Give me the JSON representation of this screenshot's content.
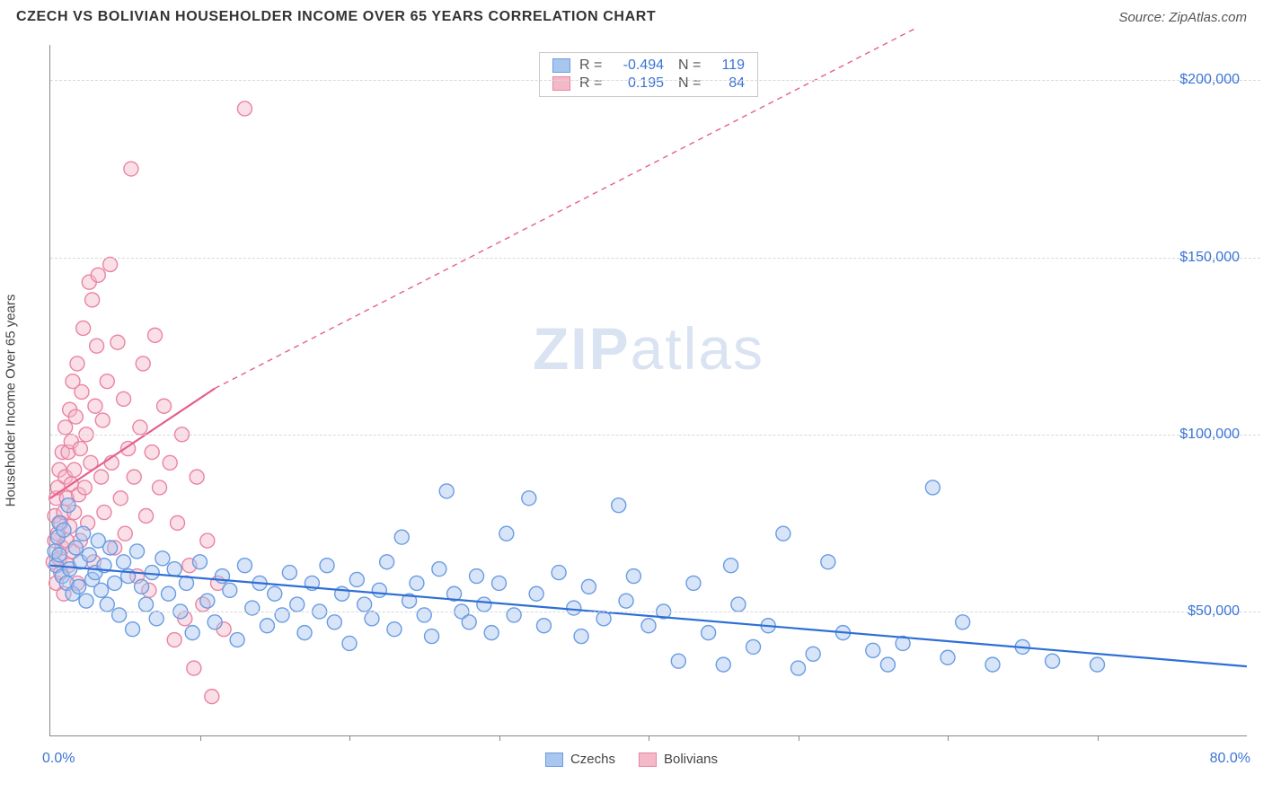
{
  "header": {
    "title": "CZECH VS BOLIVIAN HOUSEHOLDER INCOME OVER 65 YEARS CORRELATION CHART",
    "source": "Source: ZipAtlas.com"
  },
  "watermark": {
    "pre": "ZIP",
    "post": "atlas"
  },
  "ylabel": "Householder Income Over 65 years",
  "chart": {
    "type": "scatter",
    "background_color": "#ffffff",
    "grid_color": "#d8d8d8",
    "axis_color": "#888888",
    "xlim": [
      0,
      80
    ],
    "ylim": [
      15000,
      210000
    ],
    "yticks": [
      50000,
      100000,
      150000,
      200000
    ],
    "ytick_labels": [
      "$50,000",
      "$100,000",
      "$150,000",
      "$200,000"
    ],
    "xtick_positions": [
      10,
      20,
      30,
      40,
      50,
      60,
      70
    ],
    "xaxis_left_label": "0.0%",
    "xaxis_right_label": "80.0%",
    "marker_radius": 8,
    "marker_opacity": 0.45,
    "marker_stroke_width": 1.4,
    "trend_line_width": 2.2,
    "series": {
      "czechs": {
        "fill": "#a9c6ef",
        "stroke": "#6a9ce2",
        "line_color": "#2e6fd6",
        "trend": {
          "x1": 0,
          "y1": 63000,
          "x2": 80,
          "y2": 34500
        },
        "points": [
          [
            0.3,
            67000
          ],
          [
            0.4,
            63000
          ],
          [
            0.5,
            71000
          ],
          [
            0.6,
            66000
          ],
          [
            0.6,
            75000
          ],
          [
            0.8,
            60000
          ],
          [
            0.9,
            73000
          ],
          [
            1.1,
            58000
          ],
          [
            1.2,
            80000
          ],
          [
            1.3,
            62000
          ],
          [
            1.5,
            55000
          ],
          [
            1.7,
            68000
          ],
          [
            1.9,
            57000
          ],
          [
            2.0,
            64000
          ],
          [
            2.2,
            72000
          ],
          [
            2.4,
            53000
          ],
          [
            2.6,
            66000
          ],
          [
            2.8,
            59000
          ],
          [
            3.0,
            61000
          ],
          [
            3.2,
            70000
          ],
          [
            3.4,
            56000
          ],
          [
            3.6,
            63000
          ],
          [
            3.8,
            52000
          ],
          [
            4.0,
            68000
          ],
          [
            4.3,
            58000
          ],
          [
            4.6,
            49000
          ],
          [
            4.9,
            64000
          ],
          [
            5.2,
            60000
          ],
          [
            5.5,
            45000
          ],
          [
            5.8,
            67000
          ],
          [
            6.1,
            57000
          ],
          [
            6.4,
            52000
          ],
          [
            6.8,
            61000
          ],
          [
            7.1,
            48000
          ],
          [
            7.5,
            65000
          ],
          [
            7.9,
            55000
          ],
          [
            8.3,
            62000
          ],
          [
            8.7,
            50000
          ],
          [
            9.1,
            58000
          ],
          [
            9.5,
            44000
          ],
          [
            10,
            64000
          ],
          [
            10.5,
            53000
          ],
          [
            11,
            47000
          ],
          [
            11.5,
            60000
          ],
          [
            12,
            56000
          ],
          [
            12.5,
            42000
          ],
          [
            13,
            63000
          ],
          [
            13.5,
            51000
          ],
          [
            14,
            58000
          ],
          [
            14.5,
            46000
          ],
          [
            15,
            55000
          ],
          [
            15.5,
            49000
          ],
          [
            16,
            61000
          ],
          [
            16.5,
            52000
          ],
          [
            17,
            44000
          ],
          [
            17.5,
            58000
          ],
          [
            18,
            50000
          ],
          [
            18.5,
            63000
          ],
          [
            19,
            47000
          ],
          [
            19.5,
            55000
          ],
          [
            20,
            41000
          ],
          [
            20.5,
            59000
          ],
          [
            21,
            52000
          ],
          [
            21.5,
            48000
          ],
          [
            22,
            56000
          ],
          [
            22.5,
            64000
          ],
          [
            23,
            45000
          ],
          [
            23.5,
            71000
          ],
          [
            24,
            53000
          ],
          [
            24.5,
            58000
          ],
          [
            25,
            49000
          ],
          [
            25.5,
            43000
          ],
          [
            26,
            62000
          ],
          [
            26.5,
            84000
          ],
          [
            27,
            55000
          ],
          [
            27.5,
            50000
          ],
          [
            28,
            47000
          ],
          [
            28.5,
            60000
          ],
          [
            29,
            52000
          ],
          [
            29.5,
            44000
          ],
          [
            30,
            58000
          ],
          [
            30.5,
            72000
          ],
          [
            31,
            49000
          ],
          [
            32,
            82000
          ],
          [
            32.5,
            55000
          ],
          [
            33,
            46000
          ],
          [
            34,
            61000
          ],
          [
            35,
            51000
          ],
          [
            35.5,
            43000
          ],
          [
            36,
            57000
          ],
          [
            37,
            48000
          ],
          [
            38,
            80000
          ],
          [
            38.5,
            53000
          ],
          [
            39,
            60000
          ],
          [
            40,
            46000
          ],
          [
            41,
            50000
          ],
          [
            42,
            36000
          ],
          [
            43,
            58000
          ],
          [
            44,
            44000
          ],
          [
            45,
            35000
          ],
          [
            45.5,
            63000
          ],
          [
            46,
            52000
          ],
          [
            47,
            40000
          ],
          [
            48,
            46000
          ],
          [
            49,
            72000
          ],
          [
            50,
            34000
          ],
          [
            51,
            38000
          ],
          [
            52,
            64000
          ],
          [
            53,
            44000
          ],
          [
            55,
            39000
          ],
          [
            56,
            35000
          ],
          [
            57,
            41000
          ],
          [
            59,
            85000
          ],
          [
            60,
            37000
          ],
          [
            61,
            47000
          ],
          [
            63,
            35000
          ],
          [
            65,
            40000
          ],
          [
            67,
            36000
          ],
          [
            70,
            35000
          ]
        ]
      },
      "bolivians": {
        "fill": "#f4b9c9",
        "stroke": "#ea83a4",
        "line_color": "#e65f8e",
        "trend_solid": {
          "x1": 0,
          "y1": 82000,
          "x2": 11,
          "y2": 113000
        },
        "trend_dash": {
          "x1": 11,
          "y1": 113000,
          "x2": 58,
          "y2": 215000
        },
        "points": [
          [
            0.2,
            64000
          ],
          [
            0.3,
            70000
          ],
          [
            0.3,
            77000
          ],
          [
            0.4,
            82000
          ],
          [
            0.4,
            58000
          ],
          [
            0.5,
            72000
          ],
          [
            0.5,
            85000
          ],
          [
            0.6,
            65000
          ],
          [
            0.6,
            90000
          ],
          [
            0.7,
            75000
          ],
          [
            0.7,
            61000
          ],
          [
            0.8,
            95000
          ],
          [
            0.8,
            68000
          ],
          [
            0.9,
            78000
          ],
          [
            0.9,
            55000
          ],
          [
            1.0,
            88000
          ],
          [
            1.0,
            102000
          ],
          [
            1.1,
            70000
          ],
          [
            1.1,
            82000
          ],
          [
            1.2,
            95000
          ],
          [
            1.2,
            63000
          ],
          [
            1.3,
            107000
          ],
          [
            1.3,
            74000
          ],
          [
            1.4,
            86000
          ],
          [
            1.4,
            98000
          ],
          [
            1.5,
            115000
          ],
          [
            1.5,
            67000
          ],
          [
            1.6,
            90000
          ],
          [
            1.6,
            78000
          ],
          [
            1.7,
            105000
          ],
          [
            1.8,
            58000
          ],
          [
            1.8,
            120000
          ],
          [
            1.9,
            83000
          ],
          [
            2.0,
            96000
          ],
          [
            2.0,
            70000
          ],
          [
            2.1,
            112000
          ],
          [
            2.2,
            130000
          ],
          [
            2.3,
            85000
          ],
          [
            2.4,
            100000
          ],
          [
            2.5,
            75000
          ],
          [
            2.6,
            143000
          ],
          [
            2.7,
            92000
          ],
          [
            2.8,
            138000
          ],
          [
            2.9,
            64000
          ],
          [
            3.0,
            108000
          ],
          [
            3.1,
            125000
          ],
          [
            3.2,
            145000
          ],
          [
            3.4,
            88000
          ],
          [
            3.5,
            104000
          ],
          [
            3.6,
            78000
          ],
          [
            3.8,
            115000
          ],
          [
            4.0,
            148000
          ],
          [
            4.1,
            92000
          ],
          [
            4.3,
            68000
          ],
          [
            4.5,
            126000
          ],
          [
            4.7,
            82000
          ],
          [
            4.9,
            110000
          ],
          [
            5.0,
            72000
          ],
          [
            5.2,
            96000
          ],
          [
            5.4,
            175000
          ],
          [
            5.6,
            88000
          ],
          [
            5.8,
            60000
          ],
          [
            6.0,
            102000
          ],
          [
            6.2,
            120000
          ],
          [
            6.4,
            77000
          ],
          [
            6.6,
            56000
          ],
          [
            6.8,
            95000
          ],
          [
            7.0,
            128000
          ],
          [
            7.3,
            85000
          ],
          [
            7.6,
            108000
          ],
          [
            8.0,
            92000
          ],
          [
            8.3,
            42000
          ],
          [
            8.5,
            75000
          ],
          [
            8.8,
            100000
          ],
          [
            9.0,
            48000
          ],
          [
            9.3,
            63000
          ],
          [
            9.6,
            34000
          ],
          [
            9.8,
            88000
          ],
          [
            10.2,
            52000
          ],
          [
            10.5,
            70000
          ],
          [
            10.8,
            26000
          ],
          [
            11.2,
            58000
          ],
          [
            11.6,
            45000
          ],
          [
            13.0,
            192000
          ]
        ]
      }
    }
  },
  "corr_legend": [
    {
      "swatch_fill": "#a9c6ef",
      "swatch_stroke": "#6a9ce2",
      "r_label": "R =",
      "r_val": "-0.494",
      "n_label": "N =",
      "n_val": "119"
    },
    {
      "swatch_fill": "#f4b9c9",
      "swatch_stroke": "#ea83a4",
      "r_label": "R =",
      "r_val": "0.195",
      "n_label": "N =",
      "n_val": "84"
    }
  ],
  "bottom_legend": [
    {
      "swatch_fill": "#a9c6ef",
      "swatch_stroke": "#6a9ce2",
      "label": "Czechs"
    },
    {
      "swatch_fill": "#f4b9c9",
      "swatch_stroke": "#ea83a4",
      "label": "Bolivians"
    }
  ]
}
